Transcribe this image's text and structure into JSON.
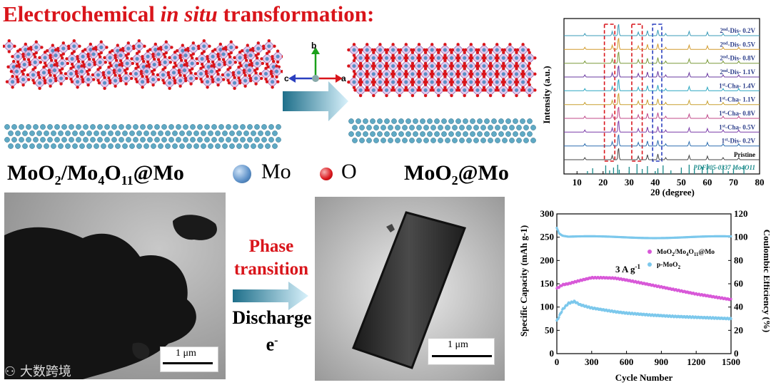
{
  "title": {
    "prefix": "Electrochemical ",
    "italic": "in situ",
    "suffix": " transformation:"
  },
  "labels": {
    "left_material": "MoO2/Mo4O11@Mo",
    "right_material": "MoO2@Mo",
    "legend_mo": "Mo",
    "legend_o": "O"
  },
  "axes_glyph": {
    "b": "b",
    "c": "c",
    "a": "a"
  },
  "process": {
    "phase_line1": "Phase",
    "phase_line2": "transition",
    "discharge": "Discharge",
    "electron": "e",
    "electron_sup": "-"
  },
  "scale_bars": {
    "left": "1 μm",
    "right": "1 μm"
  },
  "watermark": "大数跨境",
  "colors": {
    "title_red": "#d9151b",
    "mo_atom": "#5b8fc7",
    "o_atom": "#d9151b",
    "arrow_teal": "#1e6f8a",
    "arrow_light": "#bfe6f7",
    "dashed_red": "#d9151b",
    "dashed_blue": "#2a3fbf",
    "series1": "#d858d8",
    "series2": "#7cc8ec"
  },
  "chart_data": [
    {
      "type": "line",
      "xlabel": "2θ (degree)",
      "ylabel": "Intensity (a.u.)",
      "xlim": [
        5,
        80
      ],
      "xticks": [
        10,
        20,
        30,
        40,
        50,
        60,
        70,
        80
      ],
      "series": [
        {
          "name": "2nd-Dis- 0.2V",
          "color": "#3a9bb8"
        },
        {
          "name": "2nd-Dis- 0.5V",
          "color": "#d29a2b"
        },
        {
          "name": "2nd-Dis- 0.8V",
          "color": "#7a9a3a"
        },
        {
          "name": "2nd-Dis- 1.1V",
          "color": "#6a3aa0"
        },
        {
          "name": "1st-Cha- 1.4V",
          "color": "#2aa6c0"
        },
        {
          "name": "1st-Cha- 1.1V",
          "color": "#c8a030"
        },
        {
          "name": "1st-Cha- 0.8V",
          "color": "#c04a8a"
        },
        {
          "name": "1st-Cha- 0.5V",
          "color": "#7a3aa8"
        },
        {
          "name": "1st-Dis- 0.2V",
          "color": "#2f6fb0"
        },
        {
          "name": "Pristine",
          "color": "#444444"
        }
      ],
      "reference": "PDF#05-0337 Mo4O11",
      "ref_peaks": [
        14,
        16,
        21,
        22.5,
        24,
        25.6,
        26.2,
        30,
        33,
        35,
        37,
        40,
        41,
        43,
        46,
        50,
        53,
        55,
        58,
        60,
        62,
        66,
        68,
        70,
        74
      ],
      "highlight_ranges": [
        {
          "x": [
            20.5,
            24.5
          ],
          "color": "red"
        },
        {
          "x": [
            31,
            35
          ],
          "color": "red"
        },
        {
          "x": [
            39,
            42.5
          ],
          "color": "blue"
        }
      ]
    },
    {
      "type": "scatter",
      "xlabel": "Cycle Number",
      "ylabel": "Specific Capacity (mAh g-1)",
      "y2label": "Coulombic Efficiency (%)",
      "xlim": [
        0,
        1500
      ],
      "ylim": [
        0,
        300
      ],
      "y2lim": [
        0,
        120
      ],
      "xticks": [
        0,
        300,
        600,
        900,
        1200,
        1500
      ],
      "yticks": [
        0,
        50,
        100,
        150,
        200,
        250,
        300
      ],
      "y2ticks": [
        0,
        20,
        40,
        60,
        80,
        100,
        120
      ],
      "annotation": "3 A g-1",
      "series": [
        {
          "name": "MoO2/Mo4O11@Mo",
          "x": [
            0,
            50,
            100,
            200,
            300,
            400,
            500,
            600,
            800,
            1000,
            1200,
            1400,
            1500
          ],
          "y": [
            140,
            148,
            150,
            157,
            163,
            163,
            162,
            158,
            148,
            138,
            128,
            120,
            116
          ]
        },
        {
          "name": "p-MoO2",
          "x": [
            0,
            50,
            100,
            150,
            200,
            300,
            400,
            500,
            600,
            800,
            1000,
            1200,
            1400,
            1500
          ],
          "y": [
            70,
            95,
            108,
            112,
            105,
            98,
            94,
            90,
            87,
            83,
            80,
            78,
            76,
            75
          ]
        },
        {
          "name": "Coulombic Efficiency",
          "x": [
            0,
            20,
            50,
            100,
            300,
            600,
            900,
            1200,
            1500
          ],
          "y": [
            108,
            103,
            101,
            100,
            100,
            100,
            100,
            100,
            100
          ]
        }
      ]
    }
  ]
}
